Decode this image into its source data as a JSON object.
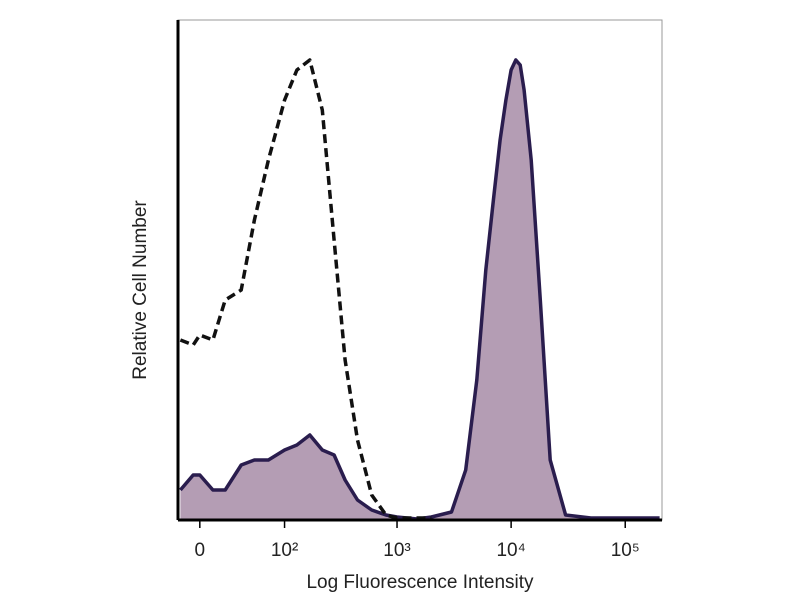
{
  "chart_data": {
    "type": "line",
    "xlabel": "Log Fluorescence Intensity",
    "ylabel": "Relative Cell Number",
    "xscale": "biexponential",
    "xlim": [
      -17,
      210000
    ],
    "ylim": [
      0,
      100
    ],
    "xticks": [
      0,
      {
        "value": 100,
        "label": "10²"
      },
      {
        "value": 1000,
        "label": "10³"
      },
      {
        "value": 10000,
        "label": "10⁴"
      },
      {
        "value": 100000,
        "label": "10⁵"
      }
    ],
    "x": [
      -15,
      -5,
      0,
      10,
      20,
      35,
      50,
      70,
      100,
      130,
      170,
      220,
      280,
      350,
      450,
      600,
      800,
      1000,
      1500,
      2000,
      3000,
      4000,
      5000,
      6000,
      7000,
      8000,
      9000,
      10000,
      11000,
      12000,
      13000,
      15000,
      18000,
      22000,
      30000,
      50000,
      100000,
      200000
    ],
    "series": [
      {
        "color": "#2a1d4e",
        "fill_color": "#b49db4",
        "filled": true,
        "dashed": false,
        "values": [
          6,
          9,
          9,
          6,
          6,
          11,
          12,
          12,
          14,
          15,
          17,
          14,
          13,
          8,
          4,
          2,
          1,
          0.6,
          0.2,
          0.6,
          1.6,
          10,
          28,
          50,
          64,
          76,
          84,
          90,
          92,
          91,
          86,
          72,
          44,
          12,
          1,
          0.4,
          0.4,
          0.4
        ]
      },
      {
        "color": "#111111",
        "filled": false,
        "dashed": true,
        "values": [
          36,
          35,
          37,
          36,
          44,
          46,
          60,
          72,
          84,
          90,
          92,
          82,
          56,
          32,
          16,
          5,
          1,
          0.4,
          0.4,
          0.4,
          null,
          null,
          null,
          null,
          null,
          null,
          null,
          null,
          null,
          null,
          null,
          null,
          null,
          null,
          null,
          null,
          null,
          null
        ]
      }
    ]
  }
}
